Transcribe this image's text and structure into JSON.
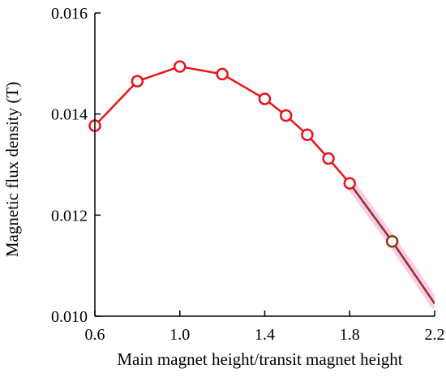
{
  "chart_data": {
    "type": "line",
    "title": "",
    "xlabel": "Main magnet height/transit magnet height",
    "ylabel": "Magnetic flux density (T)",
    "xlim": [
      0.6,
      2.2
    ],
    "ylim": [
      0.01,
      0.016
    ],
    "x_ticks": [
      0.6,
      1.0,
      1.4,
      1.8,
      2.2
    ],
    "x_tick_labels": [
      "0.6",
      "1.0",
      "1.4",
      "1.8",
      "2.2"
    ],
    "y_ticks": [
      0.01,
      0.012,
      0.014,
      0.016
    ],
    "y_tick_labels": [
      "0.010",
      "0.012",
      "0.014",
      "0.016"
    ],
    "grid": false,
    "series": [
      {
        "color": "#e8141c",
        "x": [
          0.6,
          0.8,
          1.0,
          1.2,
          1.4,
          1.5,
          1.6,
          1.7,
          1.8
        ],
        "y": [
          0.01377,
          0.01465,
          0.01494,
          0.01479,
          0.0143,
          0.01397,
          0.01359,
          0.01312,
          0.01263
        ],
        "markers": true,
        "marker_style": "open-circle"
      },
      {
        "color": "#8b3a10",
        "x": [
          1.8,
          2.0,
          2.2
        ],
        "y": [
          0.01263,
          0.01148,
          0.01025
        ],
        "markers_at": [
          2.0
        ],
        "marker_style": "open-circle",
        "highlight_color": "#ff9be0"
      }
    ]
  }
}
